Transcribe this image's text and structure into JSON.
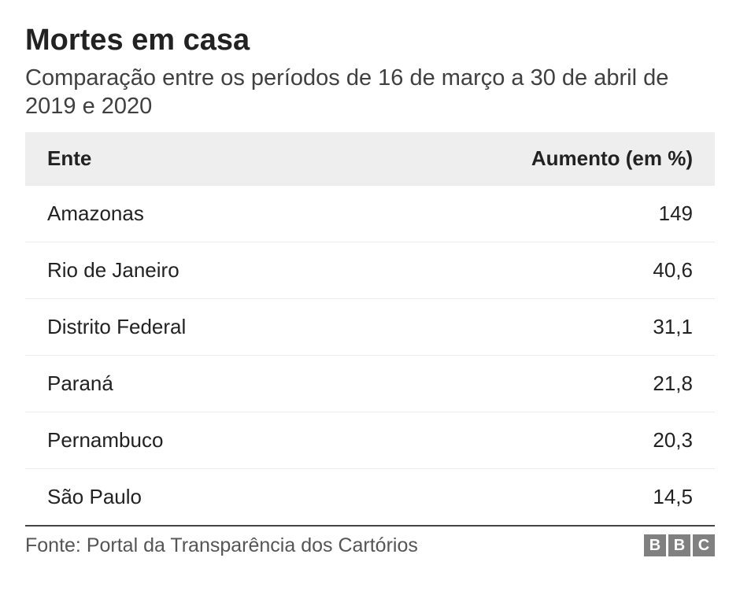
{
  "title": "Mortes em casa",
  "subtitle": "Comparação entre os períodos de 16 de março a 30 de abril de 2019 e 2020",
  "table": {
    "type": "table",
    "columns": [
      {
        "label": "Ente",
        "align": "left"
      },
      {
        "label": "Aumento (em %)",
        "align": "right"
      }
    ],
    "rows": [
      [
        "Amazonas",
        "149"
      ],
      [
        "Rio de Janeiro",
        "40,6"
      ],
      [
        "Distrito Federal",
        "31,1"
      ],
      [
        "Paraná",
        "21,8"
      ],
      [
        "Pernambuco",
        "20,3"
      ],
      [
        "São Paulo",
        "14,5"
      ]
    ],
    "header_bg": "#eeeeee",
    "row_border_color": "#ececec",
    "bottom_border_color": "#444444",
    "font_size": 26,
    "cell_padding": "20px 28px"
  },
  "source": "Fonte: Portal da Transparência dos Cartórios",
  "logo": {
    "letters": [
      "B",
      "B",
      "C"
    ],
    "box_color": "#808080",
    "text_color": "#ffffff"
  },
  "colors": {
    "background": "#ffffff",
    "title_color": "#222222",
    "subtitle_color": "#404040",
    "source_color": "#555555"
  },
  "typography": {
    "title_fontsize": 38,
    "title_weight": "bold",
    "subtitle_fontsize": 29,
    "source_fontsize": 25,
    "font_family": "Helvetica, Arial, sans-serif"
  }
}
